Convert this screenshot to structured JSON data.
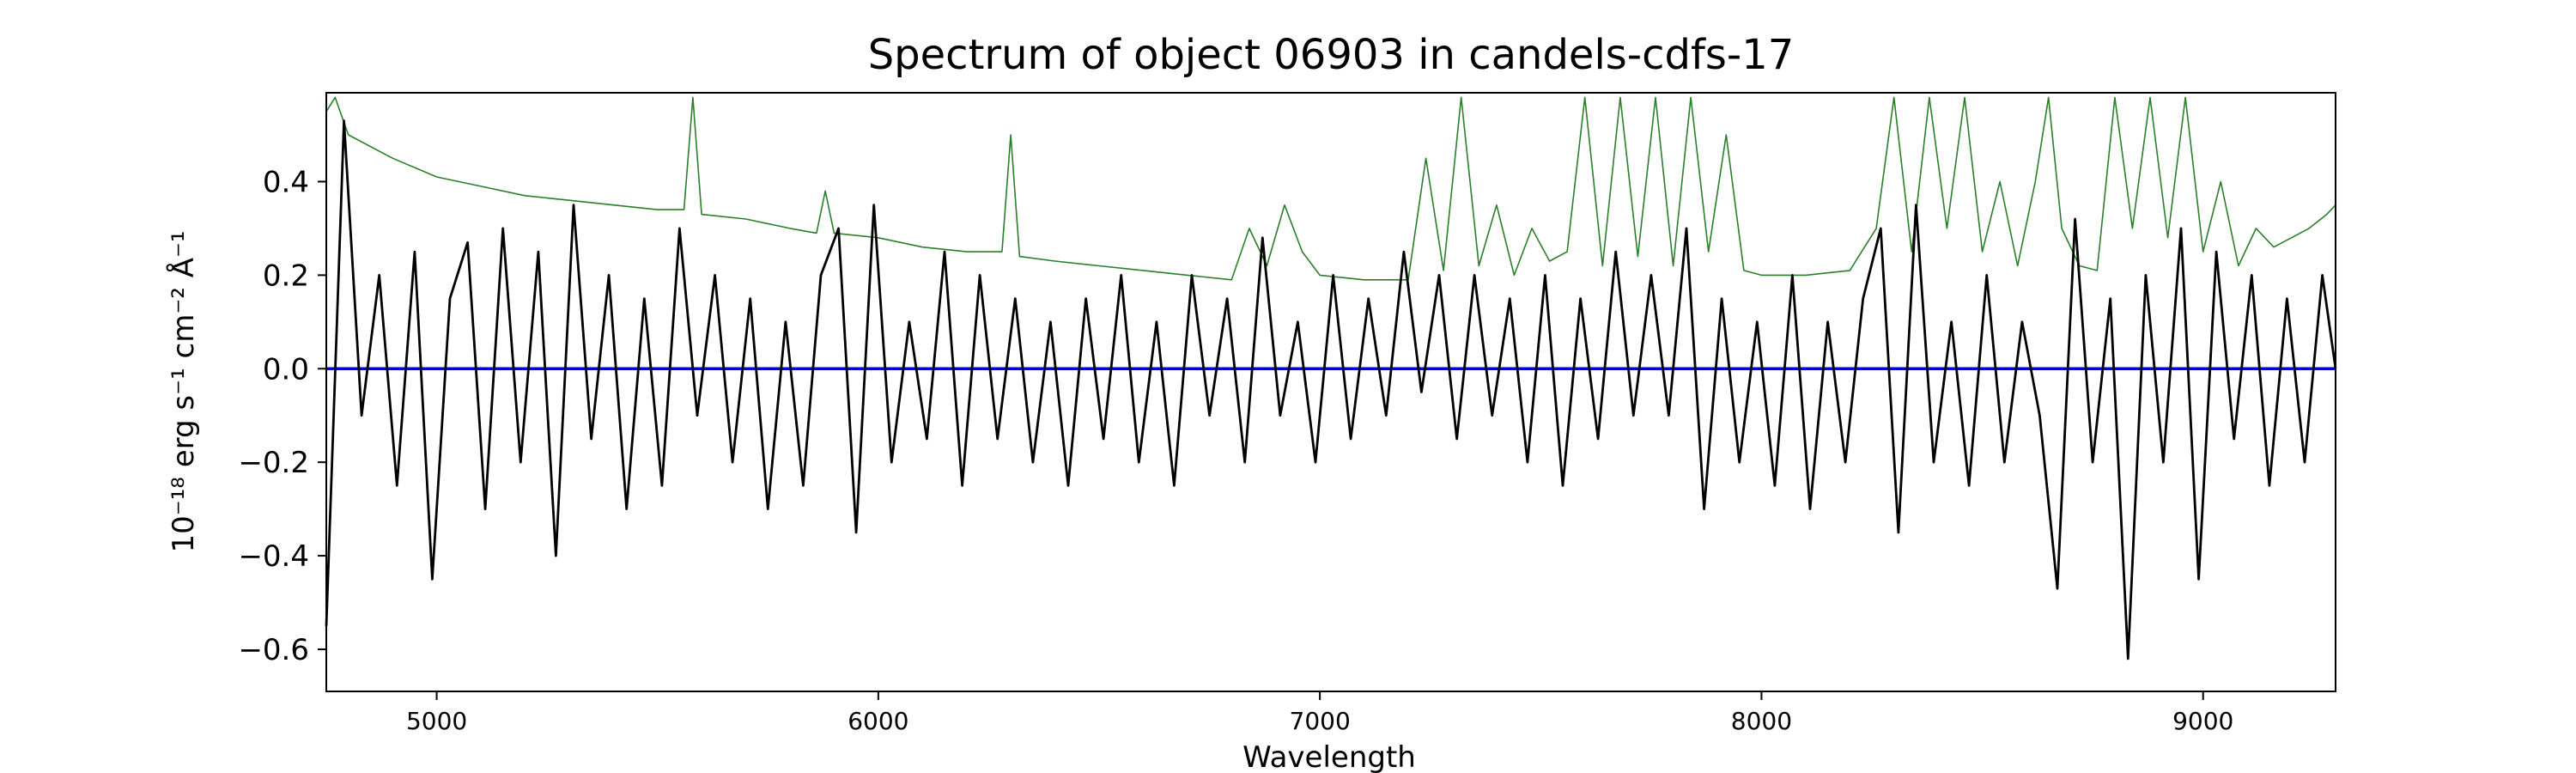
{
  "chart_data": {
    "type": "line",
    "title": "Spectrum of object 06903 in candels-cdfs-17",
    "xlabel": "Wavelength",
    "ylabel": "10⁻¹⁸ erg s⁻¹ cm⁻² Å⁻¹",
    "xlim": [
      4750,
      9300
    ],
    "ylim": [
      -0.69,
      0.59
    ],
    "x_ticks": [
      5000,
      6000,
      7000,
      8000,
      9000
    ],
    "y_ticks": [
      -0.6,
      -0.4,
      -0.2,
      0.0,
      0.2,
      0.4
    ],
    "grid": false,
    "series": [
      {
        "role": "flux",
        "color": "#000000",
        "x": [
          4750,
          4790,
          4830,
          4870,
          4910,
          4950,
          4990,
          5030,
          5070,
          5110,
          5150,
          5190,
          5230,
          5270,
          5310,
          5350,
          5390,
          5430,
          5470,
          5510,
          5550,
          5590,
          5630,
          5670,
          5710,
          5750,
          5790,
          5830,
          5870,
          5910,
          5950,
          5990,
          6030,
          6070,
          6110,
          6150,
          6190,
          6230,
          6270,
          6310,
          6350,
          6390,
          6430,
          6470,
          6510,
          6550,
          6590,
          6630,
          6670,
          6710,
          6750,
          6790,
          6830,
          6870,
          6910,
          6950,
          6990,
          7030,
          7070,
          7110,
          7150,
          7190,
          7230,
          7270,
          7310,
          7350,
          7390,
          7430,
          7470,
          7510,
          7550,
          7590,
          7630,
          7670,
          7710,
          7750,
          7790,
          7830,
          7870,
          7910,
          7950,
          7990,
          8030,
          8070,
          8110,
          8150,
          8190,
          8230,
          8270,
          8310,
          8350,
          8390,
          8430,
          8470,
          8510,
          8550,
          8590,
          8630,
          8670,
          8710,
          8750,
          8790,
          8830,
          8870,
          8910,
          8950,
          8990,
          9030,
          9070,
          9110,
          9150,
          9190,
          9230,
          9270,
          9300
        ],
        "values": [
          -0.55,
          0.53,
          -0.1,
          0.2,
          -0.25,
          0.25,
          -0.45,
          0.15,
          0.27,
          -0.3,
          0.3,
          -0.2,
          0.25,
          -0.4,
          0.35,
          -0.15,
          0.2,
          -0.3,
          0.15,
          -0.25,
          0.3,
          -0.1,
          0.2,
          -0.2,
          0.15,
          -0.3,
          0.1,
          -0.25,
          0.2,
          0.3,
          -0.35,
          0.35,
          -0.2,
          0.1,
          -0.15,
          0.25,
          -0.25,
          0.2,
          -0.15,
          0.15,
          -0.2,
          0.1,
          -0.25,
          0.15,
          -0.15,
          0.2,
          -0.2,
          0.1,
          -0.25,
          0.2,
          -0.1,
          0.15,
          -0.2,
          0.28,
          -0.1,
          0.1,
          -0.2,
          0.2,
          -0.15,
          0.15,
          -0.1,
          0.25,
          -0.05,
          0.2,
          -0.15,
          0.2,
          -0.1,
          0.15,
          -0.2,
          0.2,
          -0.25,
          0.15,
          -0.15,
          0.25,
          -0.1,
          0.2,
          -0.1,
          0.3,
          -0.3,
          0.15,
          -0.2,
          0.1,
          -0.25,
          0.2,
          -0.3,
          0.1,
          -0.2,
          0.15,
          0.3,
          -0.35,
          0.35,
          -0.2,
          0.1,
          -0.25,
          0.2,
          -0.2,
          0.1,
          -0.1,
          -0.47,
          0.32,
          -0.2,
          0.15,
          -0.62,
          0.2,
          -0.2,
          0.3,
          -0.45,
          0.25,
          -0.15,
          0.2,
          -0.25,
          0.15,
          -0.2,
          0.2,
          0.0
        ]
      },
      {
        "role": "error",
        "color": "#2a7f2a",
        "x": [
          4750,
          4770,
          4800,
          4900,
          5000,
          5100,
          5200,
          5300,
          5400,
          5500,
          5560,
          5580,
          5600,
          5700,
          5800,
          5860,
          5880,
          5900,
          6000,
          6100,
          6200,
          6280,
          6300,
          6320,
          6400,
          6500,
          6600,
          6700,
          6800,
          6840,
          6880,
          6920,
          6960,
          7000,
          7100,
          7200,
          7240,
          7280,
          7320,
          7360,
          7400,
          7440,
          7480,
          7520,
          7560,
          7600,
          7640,
          7680,
          7720,
          7760,
          7800,
          7840,
          7880,
          7920,
          7960,
          8000,
          8100,
          8200,
          8260,
          8300,
          8340,
          8380,
          8420,
          8460,
          8500,
          8540,
          8580,
          8620,
          8650,
          8680,
          8720,
          8760,
          8800,
          8840,
          8880,
          8920,
          8960,
          9000,
          9040,
          9080,
          9120,
          9160,
          9200,
          9240,
          9280,
          9300
        ],
        "values": [
          0.55,
          0.58,
          0.5,
          0.45,
          0.41,
          0.39,
          0.37,
          0.36,
          0.35,
          0.34,
          0.34,
          0.58,
          0.33,
          0.32,
          0.3,
          0.29,
          0.38,
          0.29,
          0.28,
          0.26,
          0.25,
          0.25,
          0.5,
          0.24,
          0.23,
          0.22,
          0.21,
          0.2,
          0.19,
          0.3,
          0.22,
          0.35,
          0.25,
          0.2,
          0.19,
          0.19,
          0.45,
          0.21,
          0.58,
          0.22,
          0.35,
          0.2,
          0.3,
          0.23,
          0.25,
          0.58,
          0.22,
          0.58,
          0.24,
          0.58,
          0.22,
          0.58,
          0.25,
          0.5,
          0.21,
          0.2,
          0.2,
          0.21,
          0.3,
          0.58,
          0.25,
          0.58,
          0.3,
          0.58,
          0.25,
          0.4,
          0.22,
          0.4,
          0.58,
          0.3,
          0.22,
          0.21,
          0.58,
          0.3,
          0.58,
          0.28,
          0.58,
          0.25,
          0.4,
          0.22,
          0.3,
          0.26,
          0.28,
          0.3,
          0.33,
          0.35
        ]
      },
      {
        "role": "zero-line",
        "color": "#0000cc",
        "x": [
          4750,
          9300
        ],
        "values": [
          0.0,
          0.0
        ]
      }
    ]
  }
}
